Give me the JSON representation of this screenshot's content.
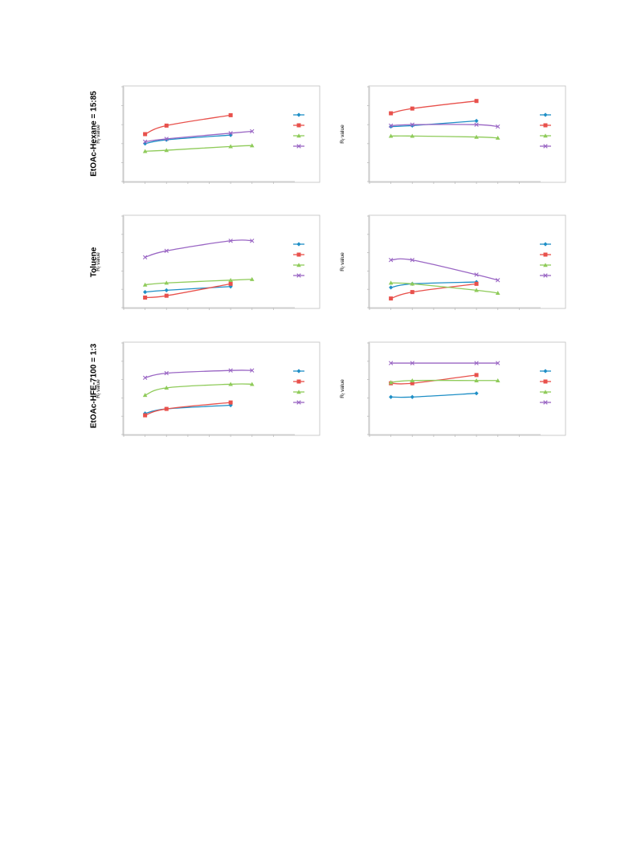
{
  "row_labels": [
    "EtOAc-Hexane = 15:85",
    "Toluene",
    "EtOAc-HFE-7100 = 1:3"
  ],
  "ylabel_main": "R",
  "ylabel_sub": "f",
  "ylabel_rest": " value",
  "colors": {
    "series1": "#1f8fc6",
    "series2": "#e8514c",
    "series3": "#8fcb5a",
    "series4": "#9a66c4",
    "axis": "#bfbfbf"
  },
  "chart_data": [
    {
      "type": "line",
      "xlim": [
        0,
        8
      ],
      "ylim": [
        0,
        1
      ],
      "x": [
        1,
        2,
        5,
        6
      ],
      "series": [
        {
          "values": [
            0.4,
            0.44,
            0.49,
            null
          ]
        },
        {
          "values": [
            0.5,
            0.59,
            0.7,
            null
          ]
        },
        {
          "values": [
            0.32,
            0.33,
            0.37,
            0.38
          ]
        },
        {
          "values": [
            0.42,
            0.45,
            0.51,
            0.53
          ]
        }
      ]
    },
    {
      "type": "line",
      "xlim": [
        0,
        8
      ],
      "ylim": [
        0,
        1
      ],
      "x": [
        1,
        2,
        5,
        6
      ],
      "series": [
        {
          "values": [
            0.58,
            0.59,
            0.64,
            null
          ]
        },
        {
          "values": [
            0.72,
            0.77,
            0.85,
            null
          ]
        },
        {
          "values": [
            0.48,
            0.48,
            0.47,
            0.46
          ]
        },
        {
          "values": [
            0.59,
            0.6,
            0.6,
            0.58
          ]
        }
      ]
    },
    {
      "type": "line",
      "xlim": [
        0,
        8
      ],
      "ylim": [
        0,
        1
      ],
      "x": [
        1,
        2,
        5,
        6
      ],
      "series": [
        {
          "values": [
            0.17,
            0.19,
            0.23,
            null
          ]
        },
        {
          "values": [
            0.11,
            0.13,
            0.26,
            null
          ]
        },
        {
          "values": [
            0.25,
            0.27,
            0.3,
            0.31
          ]
        },
        {
          "values": [
            0.55,
            0.62,
            0.73,
            0.73
          ]
        }
      ]
    },
    {
      "type": "line",
      "xlim": [
        0,
        8
      ],
      "ylim": [
        0,
        1
      ],
      "x": [
        1,
        2,
        5,
        6
      ],
      "series": [
        {
          "values": [
            0.22,
            0.26,
            0.28,
            null
          ]
        },
        {
          "values": [
            0.1,
            0.17,
            0.26,
            null
          ]
        },
        {
          "values": [
            0.27,
            0.26,
            0.19,
            0.16
          ]
        },
        {
          "values": [
            0.52,
            0.52,
            0.36,
            0.3
          ]
        }
      ]
    },
    {
      "type": "line",
      "xlim": [
        0,
        8
      ],
      "ylim": [
        0,
        1
      ],
      "x": [
        1,
        2,
        5,
        6
      ],
      "series": [
        {
          "values": [
            0.23,
            0.28,
            0.32,
            null
          ]
        },
        {
          "values": [
            0.21,
            0.28,
            0.35,
            null
          ]
        },
        {
          "values": [
            0.43,
            0.51,
            0.55,
            0.55
          ]
        },
        {
          "values": [
            0.62,
            0.67,
            0.7,
            0.7
          ]
        }
      ]
    },
    {
      "type": "line",
      "xlim": [
        0,
        8
      ],
      "ylim": [
        0,
        1
      ],
      "x": [
        1,
        2,
        5,
        6
      ],
      "series": [
        {
          "values": [
            0.41,
            0.41,
            0.45,
            null
          ]
        },
        {
          "values": [
            0.56,
            0.56,
            0.65,
            null
          ]
        },
        {
          "values": [
            0.57,
            0.59,
            0.59,
            0.59
          ]
        },
        {
          "values": [
            0.78,
            0.78,
            0.78,
            0.78
          ]
        }
      ]
    }
  ]
}
